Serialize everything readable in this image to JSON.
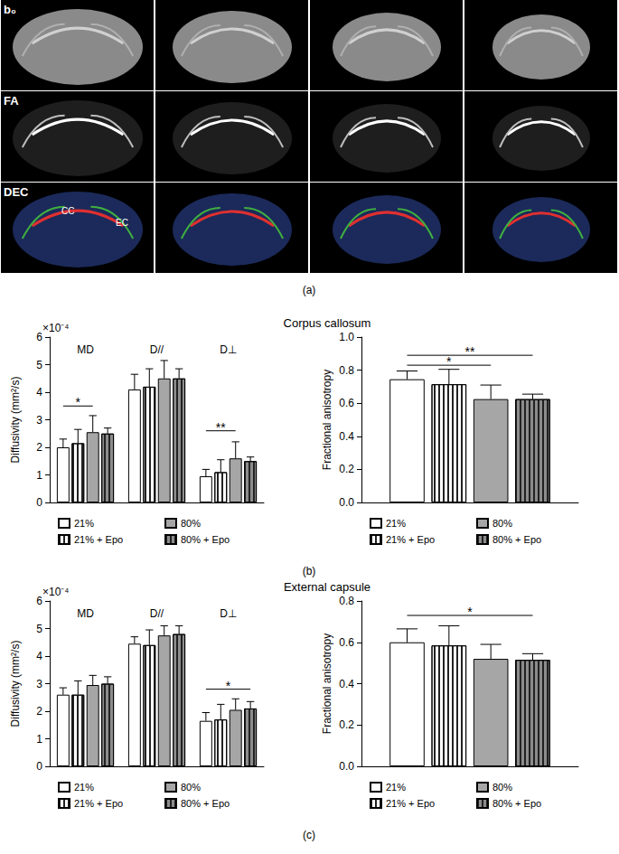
{
  "panel_a": {
    "label": "(a)",
    "rows": [
      "b₀",
      "FA",
      "DEC"
    ],
    "regions": [
      "CC",
      "EC"
    ]
  },
  "chart_data": [
    {
      "type": "bar",
      "title": "Corpus callosum",
      "label": "(b)",
      "y_label": "Diffusivity (mm²/s)",
      "y_multiplier": "×10⁻⁴",
      "categories": [
        "MD",
        "D//",
        "D⊥"
      ],
      "series": [
        {
          "name": "21%",
          "color": "#ffffff",
          "values": [
            2.0,
            4.1,
            0.95
          ],
          "errors": [
            0.3,
            0.55,
            0.25
          ]
        },
        {
          "name": "21% + Epo",
          "color": "#ffffff",
          "values": [
            2.15,
            4.2,
            1.1
          ],
          "errors": [
            0.5,
            0.65,
            0.45
          ]
        },
        {
          "name": "80%",
          "color": "#a6a6a6",
          "values": [
            2.55,
            4.5,
            1.6
          ],
          "errors": [
            0.6,
            0.65,
            0.6
          ]
        },
        {
          "name": "80% + Epo",
          "color": "#8c8c8c",
          "values": [
            2.5,
            4.5,
            1.5
          ],
          "errors": [
            0.2,
            0.35,
            0.15
          ]
        }
      ],
      "annotations": [
        {
          "category": "MD",
          "from": "21%",
          "to": "80%",
          "y": 3.5,
          "label": "*"
        },
        {
          "category": "D⊥",
          "from": "21%",
          "to": "80%",
          "y": 2.6,
          "label": "**"
        }
      ],
      "ylim": [
        0,
        6
      ],
      "yticks": [
        0,
        1,
        2,
        3,
        4,
        5,
        6
      ],
      "grid": false
    },
    {
      "type": "bar",
      "y_label": "Fractional anisotropy",
      "categories": [
        null
      ],
      "series": [
        {
          "name": "21%",
          "color": "#ffffff",
          "values": [
            0.745
          ],
          "errors": [
            0.05
          ]
        },
        {
          "name": "21% + Epo",
          "color": "#ffffff",
          "values": [
            0.715
          ],
          "errors": [
            0.09
          ]
        },
        {
          "name": "80%",
          "color": "#a6a6a6",
          "values": [
            0.625
          ],
          "errors": [
            0.085
          ]
        },
        {
          "name": "80% + Epo",
          "color": "#8c8c8c",
          "values": [
            0.625
          ],
          "errors": [
            0.03
          ]
        }
      ],
      "annotations": [
        {
          "category": null,
          "from": "21%",
          "to": "80%",
          "y": 0.83,
          "label": "*"
        },
        {
          "category": null,
          "from": "21%",
          "to": "80% + Epo",
          "y": 0.89,
          "label": "**"
        }
      ],
      "ylim": [
        0,
        1
      ],
      "yticks": [
        {
          "value": 0,
          "label": "0.0"
        },
        0.2,
        0.4,
        0.6,
        0.8,
        {
          "value": 1,
          "label": "1.0"
        }
      ],
      "grid": false
    },
    {
      "type": "bar",
      "title": "External capsule",
      "label": "(c)",
      "y_label": "Diffusivity (mm²/s)",
      "y_multiplier": "×10⁻⁴",
      "categories": [
        "MD",
        "D//",
        "D⊥"
      ],
      "series": [
        {
          "name": "21%",
          "color": "#ffffff",
          "values": [
            2.6,
            4.45,
            1.65
          ],
          "errors": [
            0.25,
            0.25,
            0.3
          ]
        },
        {
          "name": "21% + Epo",
          "color": "#ffffff",
          "values": [
            2.6,
            4.4,
            1.7
          ],
          "errors": [
            0.5,
            0.55,
            0.55
          ]
        },
        {
          "name": "80%",
          "color": "#a6a6a6",
          "values": [
            2.95,
            4.75,
            2.05
          ],
          "errors": [
            0.35,
            0.35,
            0.4
          ]
        },
        {
          "name": "80% + Epo",
          "color": "#8c8c8c",
          "values": [
            3.0,
            4.8,
            2.1
          ],
          "errors": [
            0.25,
            0.3,
            0.25
          ]
        }
      ],
      "annotations": [
        {
          "category": "D⊥",
          "from": "21%",
          "to": "80% + Epo",
          "y": 2.8,
          "label": "*"
        }
      ],
      "ylim": [
        0,
        6
      ],
      "yticks": [
        0,
        1,
        2,
        3,
        4,
        5,
        6
      ],
      "grid": false
    },
    {
      "type": "bar",
      "y_label": "Fractional anisotropy",
      "categories": [
        null
      ],
      "series": [
        {
          "name": "21%",
          "color": "#ffffff",
          "values": [
            0.6
          ],
          "errors": [
            0.065
          ]
        },
        {
          "name": "21% + Epo",
          "color": "#ffffff",
          "values": [
            0.585
          ],
          "errors": [
            0.095
          ]
        },
        {
          "name": "80%",
          "color": "#a6a6a6",
          "values": [
            0.52
          ],
          "errors": [
            0.07
          ]
        },
        {
          "name": "80% + Epo",
          "color": "#8c8c8c",
          "values": [
            0.515
          ],
          "errors": [
            0.03
          ]
        }
      ],
      "annotations": [
        {
          "category": null,
          "from": "21%",
          "to": "80% + Epo",
          "y": 0.73,
          "label": "*"
        }
      ],
      "ylim": [
        0,
        0.8
      ],
      "yticks": [
        {
          "value": 0,
          "label": "0.0"
        },
        0.2,
        0.4,
        0.6,
        0.8
      ],
      "grid": false
    }
  ]
}
